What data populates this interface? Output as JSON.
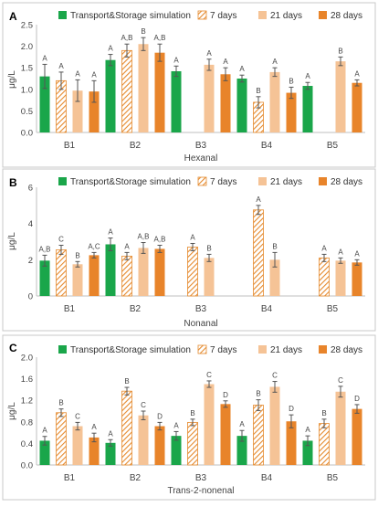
{
  "legend_labels": [
    "Transport&Storage simulation",
    "7 days",
    "21 days",
    "28 days"
  ],
  "colors": {
    "transport": "#1aa64a",
    "d7_stroke": "#e58a2e",
    "d21": "#f5c396",
    "d28": "#e8842a",
    "error": "#555555",
    "axis": "#bfbfbf"
  },
  "chart_data": [
    {
      "type": "bar",
      "panel_label": "A",
      "xlabel": "Hexanal",
      "ylabel": "μg/L",
      "ylim": [
        0,
        2.5
      ],
      "yticks": [
        "0.0",
        "0.5",
        "1.0",
        "1.5",
        "2.0",
        "2.5"
      ],
      "categories": [
        "B1",
        "B2",
        "B3",
        "B4",
        "B5"
      ],
      "series": [
        {
          "name": "Transport&Storage simulation",
          "values": [
            1.3,
            1.68,
            1.42,
            1.25,
            1.08
          ],
          "errors": [
            0.28,
            0.13,
            0.12,
            0.08,
            0.08
          ],
          "letters": [
            "A",
            "A",
            "A",
            "A",
            "A"
          ]
        },
        {
          "name": "7 days",
          "values": [
            1.2,
            1.9,
            null,
            0.7,
            null
          ],
          "errors": [
            0.2,
            0.15,
            null,
            0.13,
            null
          ],
          "letters": [
            "A",
            "A,B",
            "",
            "B",
            ""
          ]
        },
        {
          "name": "21 days",
          "values": [
            0.97,
            2.05,
            1.57,
            1.4,
            1.65
          ],
          "errors": [
            0.25,
            0.15,
            0.13,
            0.1,
            0.1
          ],
          "letters": [
            "A",
            "B",
            "A",
            "A",
            "B"
          ]
        },
        {
          "name": "28 days",
          "values": [
            0.95,
            1.85,
            1.35,
            0.92,
            1.15
          ],
          "errors": [
            0.25,
            0.2,
            0.15,
            0.13,
            0.07
          ],
          "letters": [
            "A",
            "A,B",
            "A",
            "B",
            "A"
          ]
        }
      ]
    },
    {
      "type": "bar",
      "panel_label": "B",
      "xlabel": "Nonanal",
      "ylabel": "μg/L",
      "ylim": [
        0,
        6
      ],
      "yticks": [
        "0",
        "2",
        "4",
        "6"
      ],
      "categories": [
        "B1",
        "B2",
        "B3",
        "B4",
        "B5"
      ],
      "series": [
        {
          "name": "Transport&Storage simulation",
          "values": [
            1.95,
            2.85,
            null,
            null,
            null
          ],
          "errors": [
            0.3,
            0.35,
            null,
            null,
            null
          ],
          "letters": [
            "A,B",
            "A",
            "",
            "",
            ""
          ]
        },
        {
          "name": "7 days",
          "values": [
            2.55,
            2.2,
            2.7,
            4.75,
            2.1
          ],
          "errors": [
            0.25,
            0.2,
            0.2,
            0.25,
            0.2
          ],
          "letters": [
            "C",
            "A",
            "A",
            "A",
            "A"
          ]
        },
        {
          "name": "21 days",
          "values": [
            1.75,
            2.65,
            2.1,
            2.0,
            1.95
          ],
          "errors": [
            0.15,
            0.3,
            0.2,
            0.4,
            0.15
          ],
          "letters": [
            "B",
            "A,B",
            "B",
            "B",
            "A"
          ]
        },
        {
          "name": "28 days",
          "values": [
            2.25,
            2.6,
            null,
            null,
            1.85
          ],
          "errors": [
            0.15,
            0.2,
            null,
            null,
            0.15
          ],
          "letters": [
            "A,C",
            "A,B",
            "",
            "",
            "A"
          ]
        }
      ]
    },
    {
      "type": "bar",
      "panel_label": "C",
      "xlabel": "Trans-2-nonenal",
      "ylabel": "μg/L",
      "ylim": [
        0,
        2.0
      ],
      "yticks": [
        "0.0",
        "0.4",
        "0.8",
        "1.2",
        "1.6",
        "2.0"
      ],
      "categories": [
        "B1",
        "B2",
        "B3",
        "B4",
        "B5"
      ],
      "series": [
        {
          "name": "Transport&Storage simulation",
          "values": [
            0.45,
            0.41,
            0.54,
            0.54,
            0.45
          ],
          "errors": [
            0.08,
            0.06,
            0.08,
            0.1,
            0.09
          ],
          "letters": [
            "A",
            "A",
            "A",
            "A",
            "A"
          ]
        },
        {
          "name": "7 days",
          "values": [
            0.97,
            1.37,
            0.79,
            1.11,
            0.77
          ],
          "errors": [
            0.07,
            0.07,
            0.06,
            0.1,
            0.08
          ],
          "letters": [
            "B",
            "B",
            "B",
            "B",
            "B"
          ]
        },
        {
          "name": "21 days",
          "values": [
            0.72,
            0.92,
            1.5,
            1.45,
            1.36
          ],
          "errors": [
            0.07,
            0.08,
            0.06,
            0.1,
            0.1
          ],
          "letters": [
            "C",
            "C",
            "C",
            "C",
            "C"
          ]
        },
        {
          "name": "28 days",
          "values": [
            0.51,
            0.72,
            1.13,
            0.81,
            1.04
          ],
          "errors": [
            0.08,
            0.07,
            0.06,
            0.12,
            0.08
          ],
          "letters": [
            "A",
            "D",
            "D",
            "D",
            "D"
          ]
        }
      ]
    }
  ]
}
